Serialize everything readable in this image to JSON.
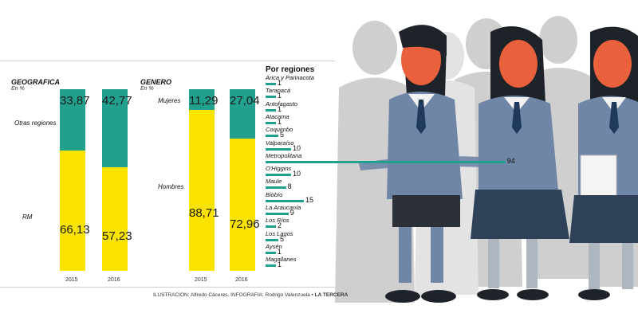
{
  "colors": {
    "yellow": "#fbe300",
    "teal": "#21a08e"
  },
  "chart_data": [
    {
      "type": "bar",
      "stacked": true,
      "title": "GEOGRAFICA",
      "unit": "En %",
      "categories": [
        "2015",
        "2016"
      ],
      "series": [
        {
          "name": "RM",
          "values": [
            66.13,
            57.23
          ]
        },
        {
          "name": "Otras regiones",
          "values": [
            33.87,
            42.77
          ]
        }
      ],
      "labels": {
        "bottom": [
          "66,13",
          "57,23"
        ],
        "top": [
          "33,87",
          "42,77"
        ]
      },
      "ylim": [
        0,
        100
      ]
    },
    {
      "type": "bar",
      "stacked": true,
      "title": "GENERO",
      "unit": "En %",
      "categories": [
        "2015",
        "2016"
      ],
      "series": [
        {
          "name": "Hombres",
          "values": [
            88.71,
            72.96
          ]
        },
        {
          "name": "Mujeres",
          "values": [
            11.29,
            27.04
          ]
        }
      ],
      "labels": {
        "bottom": [
          "88,71",
          "72,96"
        ],
        "top": [
          "11,29",
          "27,04"
        ]
      },
      "ylim": [
        0,
        100
      ]
    },
    {
      "type": "bar",
      "orientation": "horizontal",
      "title": "Por regiones",
      "categories": [
        "Arica y Parinacota",
        "Tarapacá",
        "Antofagasto",
        "Atacama",
        "Coquimbo",
        "Valparaíso",
        "Metropolitana",
        "O'Higgins",
        "Maule",
        "Biobío",
        "La Araucanía",
        "Los Ríos",
        "Los Lagos",
        "Aysén",
        "Magallanes"
      ],
      "values": [
        1,
        1,
        1,
        1,
        5,
        10,
        94,
        10,
        8,
        15,
        9,
        2,
        5,
        1,
        1
      ]
    }
  ],
  "credit": {
    "text": "ILUSTRACION: Alfredo Cáceres, INFOGRAFIA: Rodrigo Valenzuela •",
    "brand": "LA TERCERA"
  }
}
